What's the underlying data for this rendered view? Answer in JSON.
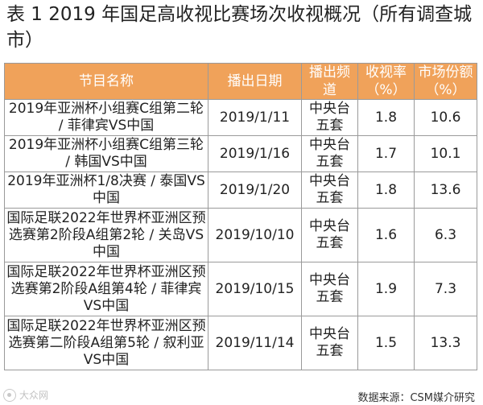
{
  "title": "表 1 2019 年国足高收视比赛场次收视概况（所有调查城市）",
  "table": {
    "headers": [
      "节目名称",
      "播出日期",
      "播出频道",
      "收视率（%）",
      "市场份额（%）"
    ],
    "rows": [
      {
        "program": "2019年亚洲杯小组赛C组第二轮 / 菲律宾VS中国",
        "date": "2019/1/11",
        "channel": "中央台五套",
        "rating": "1.8",
        "share": "10.6"
      },
      {
        "program": "2019年亚洲杯小组赛C组第三轮 / 韩国VS中国",
        "date": "2019/1/16",
        "channel": "中央台五套",
        "rating": "1.7",
        "share": "10.1"
      },
      {
        "program": "2019年亚洲杯1/8决赛 / 泰国VS中国",
        "date": "2019/1/20",
        "channel": "中央台五套",
        "rating": "1.8",
        "share": "13.6"
      },
      {
        "program": "国际足联2022年世界杯亚洲区预选赛第2阶段A组第2轮 / 关岛VS中国",
        "date": "2019/10/10",
        "channel": "中央台五套",
        "rating": "1.6",
        "share": "6.3"
      },
      {
        "program": "国际足联2022年世界杯亚洲区预选赛第2阶段A组第4轮 / 菲律宾VS中国",
        "date": "2019/10/15",
        "channel": "中央台五套",
        "rating": "1.9",
        "share": "7.3"
      },
      {
        "program": "国际足联2022年世界杯亚洲区预选赛第二阶段A组第5轮 / 叙利亚VS中国",
        "date": "2019/11/14",
        "channel": "中央台五套",
        "rating": "1.5",
        "share": "13.3"
      }
    ]
  },
  "source": "数据来源：CSM媒介研究",
  "watermark": "大众网"
}
